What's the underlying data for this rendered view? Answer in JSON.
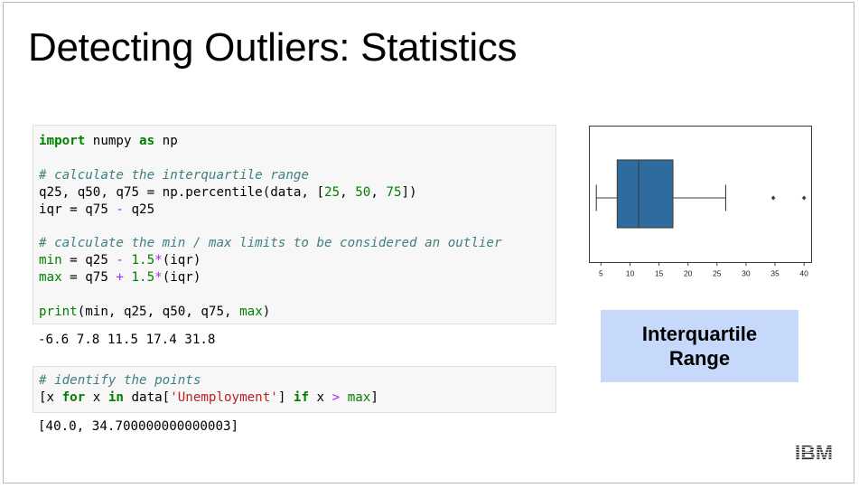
{
  "slide": {
    "title": "Detecting Outliers: Statistics",
    "badge_lines": [
      "Interquartile",
      "Range"
    ],
    "logo_text": "IBM"
  },
  "code_cell_1": {
    "line1": {
      "kw1": "import",
      "t1": " numpy ",
      "kw2": "as",
      "t2": " np"
    },
    "comment1": "# calculate the interquartile range",
    "line_percentile": {
      "t1": "q25, q50, q75 = np.percentile(data, [",
      "n1": "25",
      "t2": ", ",
      "n2": "50",
      "t3": ", ",
      "n3": "75",
      "t4": "])"
    },
    "line_iqr": {
      "t1": "iqr = q75 ",
      "op": "-",
      "t2": " q25"
    },
    "comment2": "# calculate the min / max limits to be considered an outlier",
    "line_min": {
      "t1": "min",
      "t2": " = q25 ",
      "op1": "-",
      "t3": " ",
      "n1": "1.5",
      "op2": "*",
      "t4": "(iqr)"
    },
    "line_max": {
      "t1": "max",
      "t2": " = q75 ",
      "op1": "+",
      "t3": " ",
      "n1": "1.5",
      "op2": "*",
      "t4": "(iqr)"
    },
    "line_print": {
      "fn": "print",
      "p1": "(",
      "t1": "min, q25, q50, q75, ",
      "kw": "max",
      "p2": ")"
    }
  },
  "output_1": "-6.6 7.8 11.5 17.4 31.8",
  "code_cell_2": {
    "comment": "# identify the points",
    "line": {
      "t1": "[x ",
      "kw1": "for",
      "t2": " x ",
      "kw2": "in",
      "t3": " data[",
      "str": "'Unemployment'",
      "t4": "] ",
      "kw3": "if",
      "t5": " x ",
      "op": ">",
      "t6": " ",
      "kw4": "max",
      "t7": "]"
    }
  },
  "output_2": "[40.0, 34.700000000000003]",
  "chart_data": {
    "type": "boxplot",
    "box_color": "#2e6b9e",
    "whisker_low": 4.2,
    "q1": 7.8,
    "median": 11.5,
    "q3": 17.4,
    "whisker_high": 26.5,
    "outliers": [
      34.7,
      40.0
    ],
    "xlim": [
      3.0,
      41.3
    ],
    "xticks": [
      5,
      10,
      15,
      20,
      25,
      30,
      35,
      40
    ],
    "xtick_labels": [
      "5",
      "10",
      "15",
      "20",
      "25",
      "30",
      "35",
      "40"
    ]
  }
}
